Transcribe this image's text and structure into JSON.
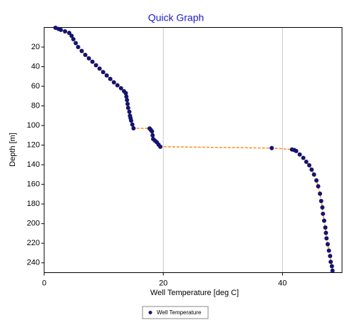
{
  "chart_data": {
    "type": "scatter",
    "title": "Quick Graph",
    "x_label": "Well Temperature [deg C]",
    "y_label": "Depth [m]",
    "xlim": [
      0,
      50
    ],
    "xticks": [
      0,
      20,
      40
    ],
    "ylim": [
      250,
      0
    ],
    "yticks": [
      20,
      40,
      60,
      80,
      100,
      120,
      140,
      160,
      180,
      200,
      220,
      240
    ],
    "grid": "x",
    "legend": "bottom",
    "series": [
      {
        "name": "Well Temperature",
        "color": "#14146e",
        "line_color": "#ff8c1a",
        "x": [
          1.9,
          2.4,
          2.8,
          3.5,
          4.2,
          4.6,
          4.9,
          5.3,
          5.7,
          6.3,
          6.9,
          7.5,
          8.1,
          8.7,
          9.3,
          9.9,
          10.5,
          11.1,
          11.7,
          12.3,
          12.9,
          13.4,
          13.7,
          13.8,
          13.9,
          14.0,
          14.1,
          14.3,
          14.4,
          14.5,
          14.6,
          14.8,
          15.0,
          17.7,
          17.9,
          18.1,
          18.2,
          18.3,
          18.6,
          18.9,
          19.2,
          19.5,
          38.2,
          41.6,
          42.0,
          42.3,
          42.9,
          43.5,
          44.0,
          44.5,
          44.9,
          45.3,
          45.7,
          46.0,
          46.3,
          46.5,
          46.7,
          46.8,
          47.0,
          47.2,
          47.3,
          47.4,
          47.6,
          47.8,
          48.0,
          48.1,
          48.3,
          48.4
        ],
        "values": [
          0.4,
          1.5,
          2.5,
          4,
          5.5,
          8.5,
          12,
          16,
          20,
          24,
          28,
          31.5,
          35,
          38.5,
          42,
          45.5,
          49,
          52.5,
          56,
          59,
          62,
          65,
          67,
          70.5,
          74,
          78,
          82,
          86,
          90,
          92.5,
          95,
          99,
          102.8,
          103,
          104.5,
          106,
          110,
          113.7,
          115.5,
          117,
          119.5,
          121.6,
          123,
          124.5,
          125,
          126,
          129.5,
          133,
          137,
          140.5,
          145,
          150,
          156,
          162,
          169.5,
          177,
          183.5,
          190,
          197,
          204,
          209.5,
          215,
          221,
          227.6,
          233,
          239,
          243.5,
          248
        ]
      }
    ]
  }
}
